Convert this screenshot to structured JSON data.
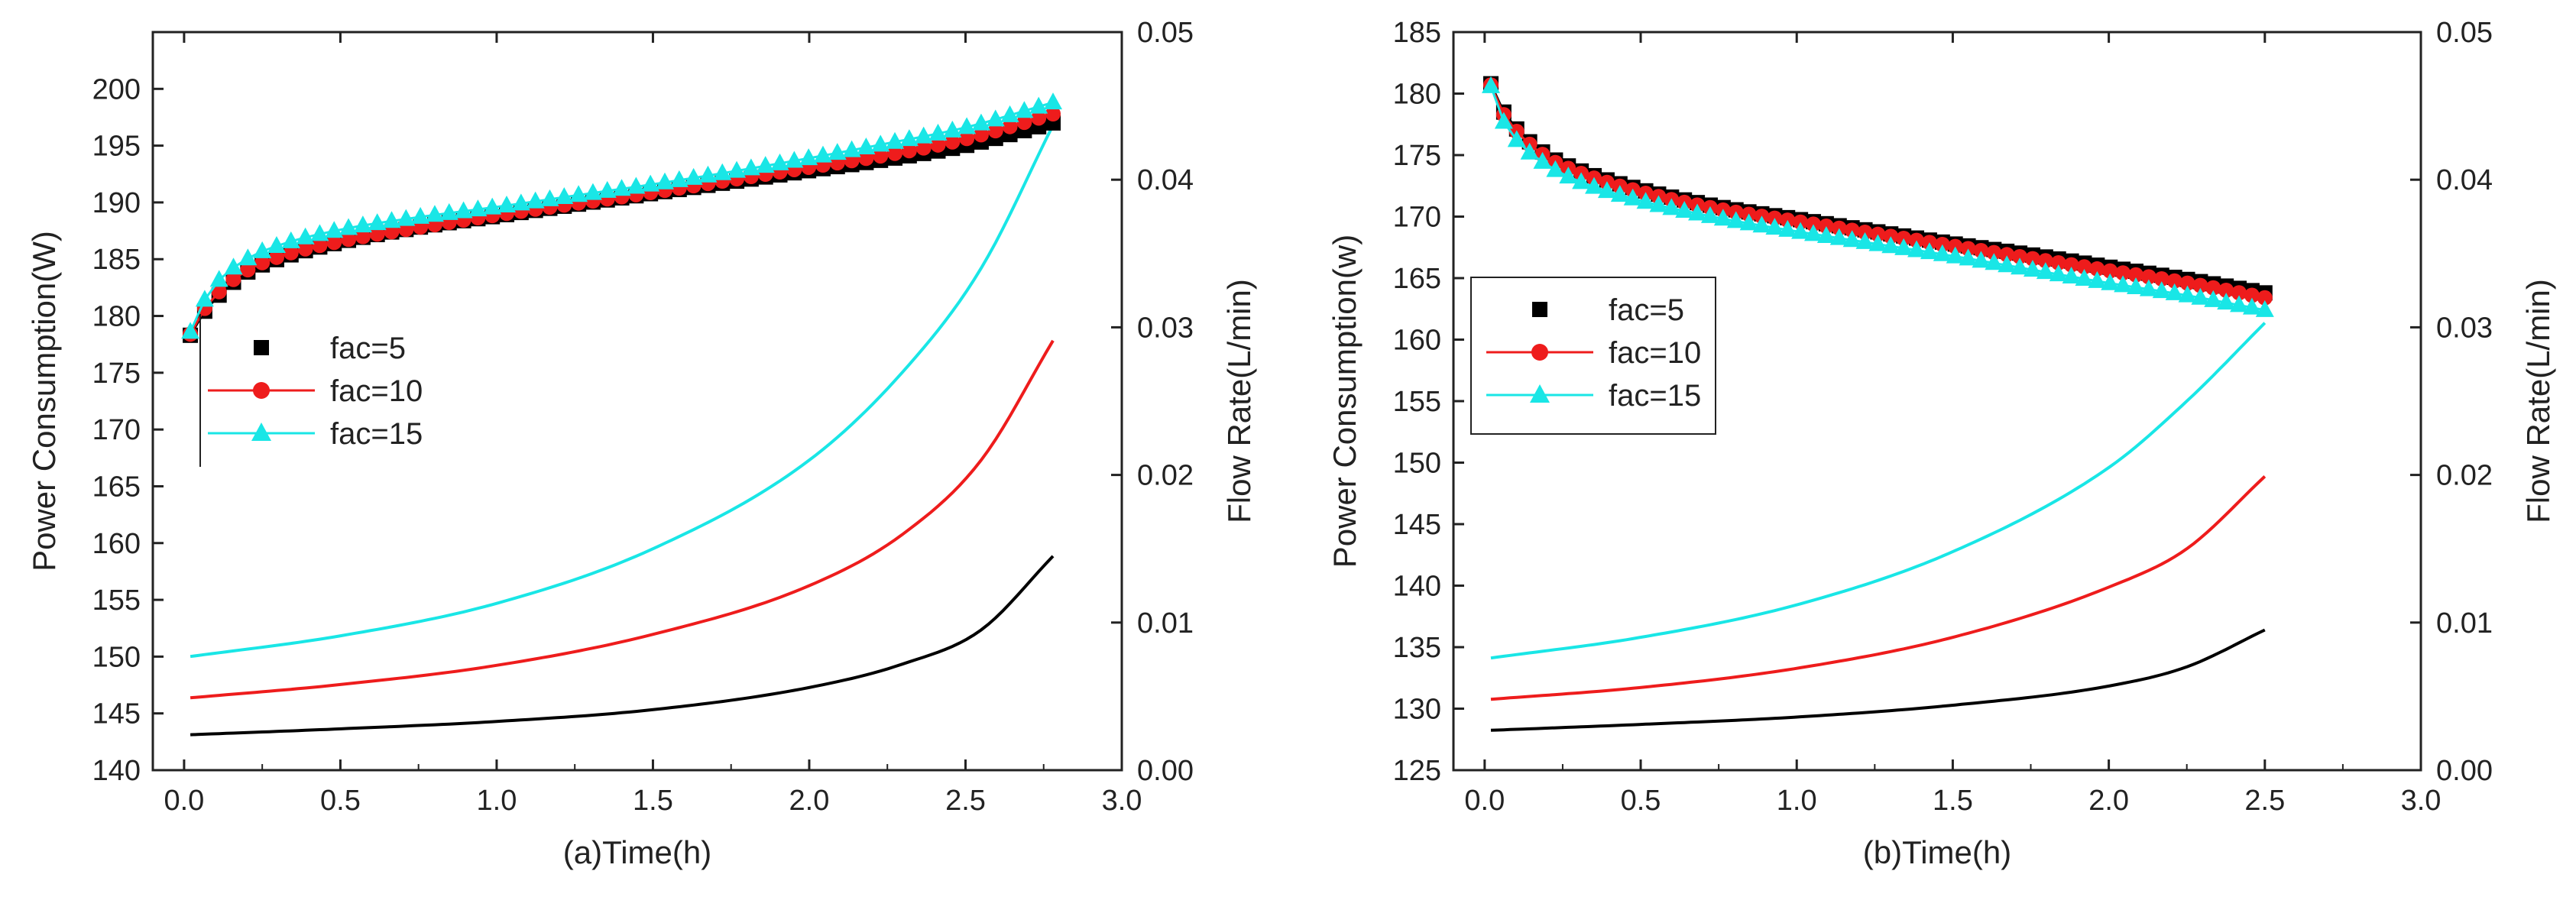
{
  "colors": {
    "fac5": "#000000",
    "fac10": "#ee1c1c",
    "fac15": "#19e6e6",
    "axis": "#222222"
  },
  "chart_data": [
    {
      "type": "line",
      "panel": "a",
      "xlabel": "(a)Time(h)",
      "ylabel": "Power Consumption(W)",
      "y2label": "Flow Rate(L/min)",
      "xlim": [
        -0.1,
        3.0
      ],
      "ylim": [
        140,
        205
      ],
      "y2lim": [
        0.0,
        0.05
      ],
      "xticks": [
        "0.0",
        "0.5",
        "1.0",
        "1.5",
        "2.0",
        "2.5",
        "3.0"
      ],
      "yticks": [
        "140",
        "145",
        "150",
        "155",
        "160",
        "165",
        "170",
        "175",
        "180",
        "185",
        "190",
        "195",
        "200"
      ],
      "y2ticks": [
        "0.00",
        "0.01",
        "0.02",
        "0.03",
        "0.04",
        "0.05"
      ],
      "legend": {
        "position": "center-left",
        "entries": [
          "fac=5",
          "fac=10",
          "fac=15"
        ]
      },
      "power_series": [
        {
          "name": "fac=5",
          "marker": "square",
          "x": [
            0.02,
            0.05,
            0.1,
            0.2,
            0.3,
            0.5,
            0.75,
            1.0,
            1.25,
            1.5,
            1.75,
            2.0,
            2.25,
            2.5,
            2.78
          ],
          "y": [
            178.3,
            179.8,
            181.5,
            183.8,
            185.0,
            186.5,
            187.8,
            188.8,
            189.8,
            190.8,
            191.8,
            192.8,
            193.8,
            195.0,
            197.0
          ]
        },
        {
          "name": "fac=10",
          "marker": "circle",
          "x": [
            0.02,
            0.05,
            0.1,
            0.2,
            0.3,
            0.5,
            0.75,
            1.0,
            1.25,
            1.5,
            1.75,
            2.0,
            2.25,
            2.5,
            2.78
          ],
          "y": [
            178.4,
            180.0,
            181.8,
            184.0,
            185.2,
            186.6,
            187.8,
            188.9,
            189.9,
            190.9,
            192.0,
            193.1,
            194.2,
            195.6,
            197.8
          ]
        },
        {
          "name": "fac=15",
          "marker": "triangle",
          "x": [
            0.02,
            0.05,
            0.1,
            0.2,
            0.3,
            0.5,
            0.75,
            1.0,
            1.25,
            1.5,
            1.75,
            2.0,
            2.25,
            2.5,
            2.78
          ],
          "y": [
            178.6,
            180.6,
            182.8,
            185.0,
            186.2,
            187.6,
            188.7,
            189.6,
            190.6,
            191.6,
            192.7,
            193.9,
            195.2,
            196.6,
            198.8
          ]
        }
      ],
      "flow_series": [
        {
          "name": "fac=5",
          "x": [
            0.02,
            0.5,
            1.0,
            1.5,
            2.0,
            2.3,
            2.55,
            2.78
          ],
          "y": [
            0.0024,
            0.0028,
            0.0033,
            0.0041,
            0.0056,
            0.0072,
            0.0095,
            0.0145
          ]
        },
        {
          "name": "fac=10",
          "x": [
            0.02,
            0.5,
            1.0,
            1.5,
            2.0,
            2.3,
            2.55,
            2.78
          ],
          "y": [
            0.0049,
            0.0058,
            0.0071,
            0.0092,
            0.0125,
            0.016,
            0.021,
            0.0291
          ]
        },
        {
          "name": "fac=15",
          "x": [
            0.02,
            0.5,
            1.0,
            1.5,
            2.0,
            2.3,
            2.55,
            2.78
          ],
          "y": [
            0.0077,
            0.0091,
            0.0113,
            0.015,
            0.021,
            0.027,
            0.034,
            0.0437
          ]
        }
      ]
    },
    {
      "type": "line",
      "panel": "b",
      "xlabel": "(b)Time(h)",
      "ylabel": "Power Consumption(w)",
      "y2label": "Flow Rate(L/min)",
      "xlim": [
        -0.1,
        3.0
      ],
      "ylim": [
        125,
        185
      ],
      "y2lim": [
        0.0,
        0.05
      ],
      "xticks": [
        "0.0",
        "0.5",
        "1.0",
        "1.5",
        "2.0",
        "2.5",
        "3.0"
      ],
      "yticks": [
        "125",
        "130",
        "135",
        "140",
        "145",
        "150",
        "155",
        "160",
        "165",
        "170",
        "175",
        "180",
        "185"
      ],
      "y2ticks": [
        "0.00",
        "0.01",
        "0.02",
        "0.03",
        "0.04",
        "0.05"
      ],
      "legend": {
        "position": "center-left",
        "entries": [
          "fac=5",
          "fac=10",
          "fac=15"
        ]
      },
      "power_series": [
        {
          "name": "fac=5",
          "marker": "square",
          "x": [
            0.02,
            0.05,
            0.1,
            0.2,
            0.3,
            0.5,
            0.75,
            1.0,
            1.25,
            1.5,
            1.75,
            2.0,
            2.25,
            2.5
          ],
          "y": [
            180.8,
            179.0,
            177.2,
            175.0,
            173.8,
            172.2,
            170.8,
            169.8,
            168.8,
            167.8,
            166.9,
            165.9,
            164.9,
            163.8
          ]
        },
        {
          "name": "fac=10",
          "marker": "circle",
          "x": [
            0.02,
            0.05,
            0.1,
            0.2,
            0.3,
            0.5,
            0.75,
            1.0,
            1.25,
            1.5,
            1.75,
            2.0,
            2.25,
            2.5
          ],
          "y": [
            180.7,
            178.8,
            177.0,
            174.8,
            173.6,
            172.0,
            170.6,
            169.6,
            168.6,
            167.6,
            166.6,
            165.6,
            164.6,
            163.4
          ]
        },
        {
          "name": "fac=15",
          "marker": "triangle",
          "x": [
            0.02,
            0.05,
            0.1,
            0.2,
            0.3,
            0.5,
            0.75,
            1.0,
            1.25,
            1.5,
            1.75,
            2.0,
            2.25,
            2.5
          ],
          "y": [
            180.6,
            178.3,
            176.3,
            174.2,
            172.9,
            171.3,
            169.9,
            168.8,
            167.8,
            166.8,
            165.7,
            164.6,
            163.6,
            162.4
          ]
        }
      ],
      "flow_series": [
        {
          "name": "fac=5",
          "x": [
            0.02,
            0.5,
            1.0,
            1.5,
            2.0,
            2.25,
            2.5
          ],
          "y": [
            0.0027,
            0.0031,
            0.0036,
            0.0044,
            0.0057,
            0.007,
            0.0095
          ]
        },
        {
          "name": "fac=10",
          "x": [
            0.02,
            0.5,
            1.0,
            1.5,
            2.0,
            2.25,
            2.5
          ],
          "y": [
            0.0048,
            0.0056,
            0.0069,
            0.009,
            0.0124,
            0.015,
            0.0199
          ]
        },
        {
          "name": "fac=15",
          "x": [
            0.02,
            0.5,
            1.0,
            1.5,
            2.0,
            2.25,
            2.5
          ],
          "y": [
            0.0076,
            0.009,
            0.0112,
            0.0148,
            0.0205,
            0.025,
            0.0303
          ]
        }
      ]
    }
  ]
}
